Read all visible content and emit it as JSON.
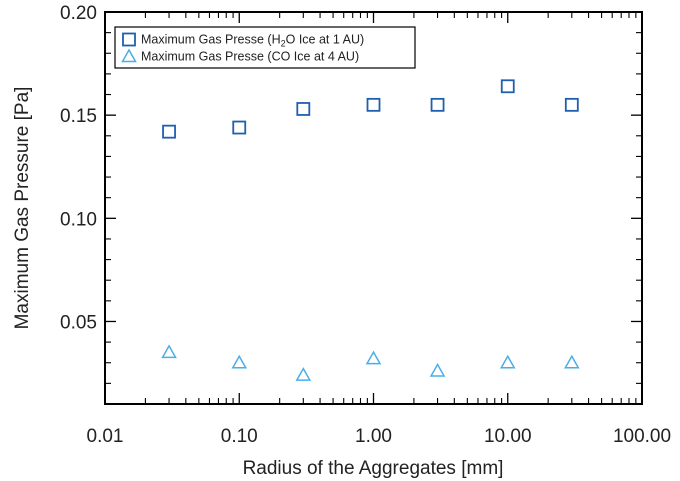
{
  "chart_data": {
    "type": "scatter",
    "title": "",
    "xlabel": "Radius of the Aggregates [mm]",
    "ylabel": "Maximum Gas Pressure [Pa]",
    "xscale": "log",
    "xlim": [
      0.01,
      100
    ],
    "ylim": [
      0.01,
      0.2
    ],
    "xticks": [
      0.01,
      0.1,
      1,
      10,
      100
    ],
    "xtick_labels": [
      "0.01",
      "0.10",
      "1.00",
      "10.00",
      "100.00"
    ],
    "yticks": [
      0.05,
      0.1,
      0.15,
      0.2
    ],
    "ytick_labels": [
      "0.05",
      "0.10",
      "0.15",
      "0.20"
    ],
    "grid": false,
    "legend_position": "top-left",
    "series": [
      {
        "name": "Maximum Gas Presse (H2O Ice at 1 AU)",
        "legend": {
          "prefix": "Maximum Gas Presse (H",
          "subscript": "2",
          "suffix": "O Ice at 1 AU)"
        },
        "marker": "square",
        "color": "#1f5fb0",
        "x": [
          0.03,
          0.1,
          0.3,
          1,
          3,
          10,
          30
        ],
        "y": [
          0.142,
          0.144,
          0.153,
          0.155,
          0.155,
          0.164,
          0.155
        ]
      },
      {
        "name": "Maximum Gas Presse (CO Ice at 4 AU)",
        "legend": {
          "prefix": "Maximum Gas Presse (CO Ice at 4 AU)",
          "subscript": "",
          "suffix": ""
        },
        "marker": "triangle",
        "color": "#4aaee8",
        "x": [
          0.03,
          0.1,
          0.3,
          1,
          3,
          10,
          30
        ],
        "y": [
          0.035,
          0.03,
          0.024,
          0.032,
          0.026,
          0.03,
          0.03
        ]
      }
    ]
  }
}
